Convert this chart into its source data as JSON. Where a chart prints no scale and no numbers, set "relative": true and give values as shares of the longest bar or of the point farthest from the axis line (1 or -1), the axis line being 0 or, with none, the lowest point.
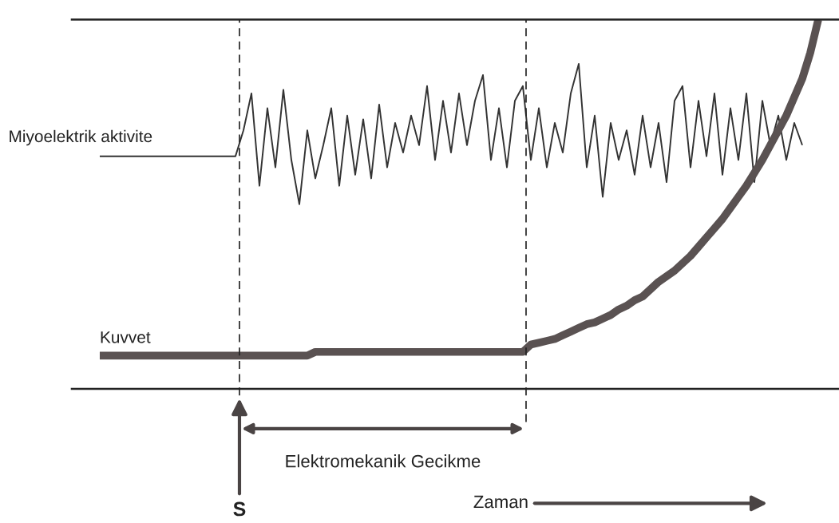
{
  "chart_data": {
    "type": "line",
    "relative": true,
    "categories": [
      null,
      null,
      null,
      null,
      null,
      null,
      null,
      null,
      null,
      null,
      null,
      null,
      null,
      null,
      null,
      null,
      null,
      null,
      null,
      null,
      null,
      null,
      null,
      null,
      null,
      null,
      null,
      null,
      null,
      null,
      null,
      null,
      null,
      null,
      null,
      null,
      null,
      null,
      null,
      null,
      null,
      null,
      null,
      null,
      null,
      null,
      null,
      null,
      null,
      null,
      null,
      null,
      null,
      null,
      null,
      null,
      null,
      null,
      null,
      null,
      null,
      null,
      null,
      null,
      null,
      null,
      null,
      null,
      null,
      null,
      null,
      null,
      null,
      null,
      null,
      null,
      null,
      null,
      null,
      null,
      null,
      null,
      null,
      null,
      null,
      null,
      null,
      null,
      null,
      null,
      null
    ],
    "series": [
      {
        "name": "Miyoelektrik aktivite",
        "color": "#333333",
        "values": [
          0.63,
          0.63,
          0.63,
          0.63,
          0.63,
          0.63,
          0.63,
          0.63,
          0.63,
          0.63,
          0.63,
          0.63,
          0.63,
          0.63,
          0.63,
          0.63,
          0.63,
          0.63,
          0.7,
          0.8,
          0.55,
          0.76,
          0.6,
          0.81,
          0.62,
          0.5,
          0.7,
          0.57,
          0.66,
          0.76,
          0.55,
          0.74,
          0.58,
          0.73,
          0.57,
          0.77,
          0.6,
          0.72,
          0.64,
          0.74,
          0.66,
          0.82,
          0.62,
          0.78,
          0.64,
          0.8,
          0.66,
          0.78,
          0.85,
          0.62,
          0.76,
          0.6,
          0.78,
          0.82,
          0.62,
          0.76,
          0.6,
          0.72,
          0.64,
          0.8,
          0.88,
          0.6,
          0.74,
          0.52,
          0.72,
          0.62,
          0.7,
          0.58,
          0.74,
          0.6,
          0.72,
          0.56,
          0.78,
          0.82,
          0.6,
          0.78,
          0.63,
          0.8,
          0.58,
          0.76,
          0.62,
          0.8,
          0.56,
          0.78,
          0.66,
          0.74,
          0.62,
          0.72,
          0.66,
          null,
          null
        ]
      },
      {
        "name": "Kuvvet",
        "color": "#5a5252",
        "values": [
          0.09,
          0.09,
          0.09,
          0.09,
          0.09,
          0.09,
          0.09,
          0.09,
          0.09,
          0.09,
          0.09,
          0.09,
          0.09,
          0.09,
          0.09,
          0.09,
          0.09,
          0.09,
          0.09,
          0.09,
          0.09,
          0.09,
          0.09,
          0.09,
          0.09,
          0.09,
          0.09,
          0.1,
          0.1,
          0.1,
          0.1,
          0.1,
          0.1,
          0.1,
          0.1,
          0.1,
          0.1,
          0.1,
          0.1,
          0.1,
          0.1,
          0.1,
          0.1,
          0.1,
          0.1,
          0.1,
          0.1,
          0.1,
          0.1,
          0.1,
          0.1,
          0.1,
          0.1,
          0.1,
          0.12,
          0.125,
          0.13,
          0.135,
          0.145,
          0.155,
          0.165,
          0.175,
          0.18,
          0.19,
          0.2,
          0.215,
          0.225,
          0.24,
          0.25,
          0.27,
          0.29,
          0.305,
          0.32,
          0.34,
          0.36,
          0.385,
          0.41,
          0.435,
          0.46,
          0.49,
          0.52,
          0.55,
          0.585,
          0.62,
          0.66,
          0.7,
          0.74,
          0.79,
          0.84,
          0.91,
          1.0
        ]
      }
    ],
    "annotations": [
      "Elektromekanik Gecikme",
      "S",
      "Zaman"
    ]
  }
}
